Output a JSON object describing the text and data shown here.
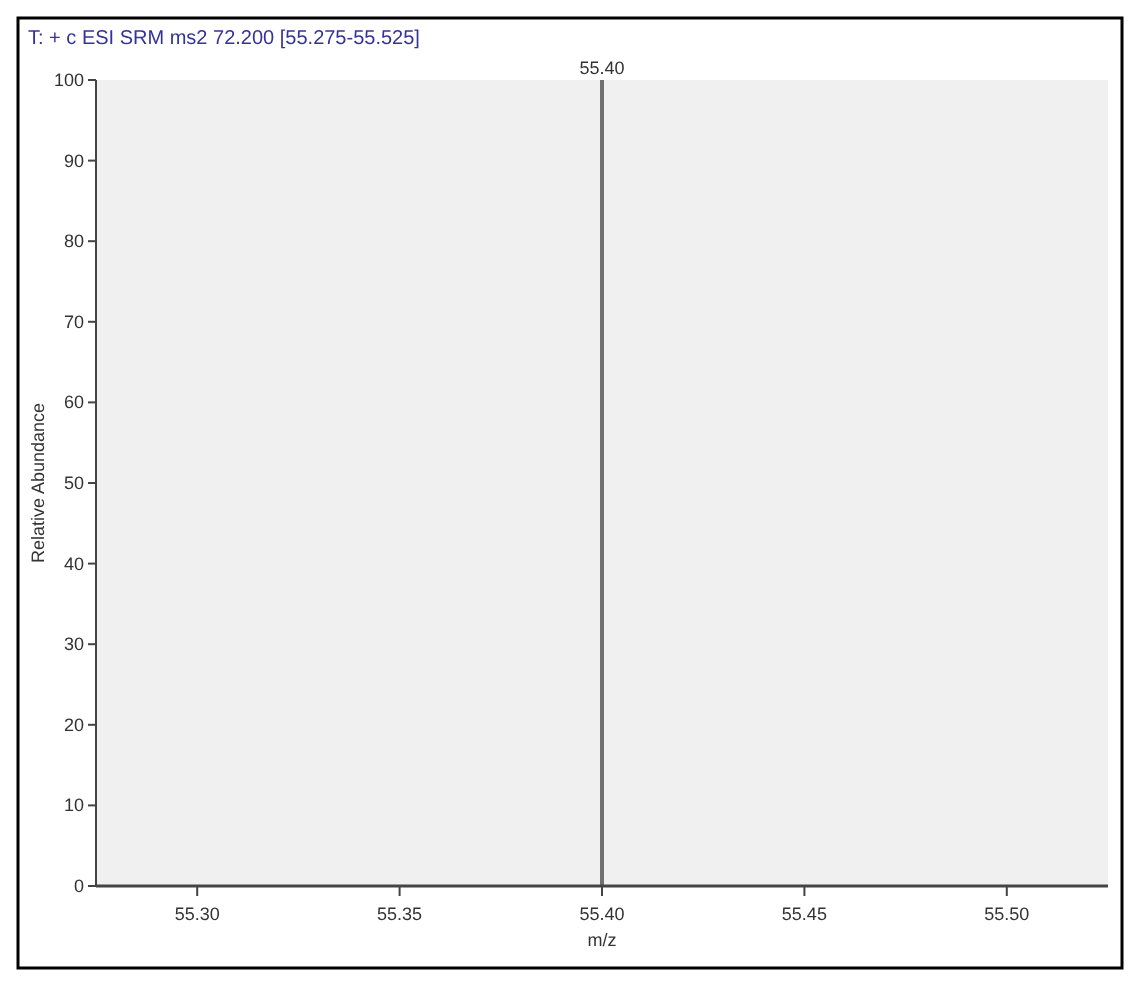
{
  "chart_data": {
    "type": "bar",
    "title": "T: + c ESI SRM ms2 72.200 [55.275-55.525]",
    "xlabel": "m/z",
    "ylabel": "Relative Abundance",
    "x": [
      55.4
    ],
    "series": [
      {
        "color": "#707070",
        "values": [
          100
        ]
      }
    ],
    "annotations": [
      {
        "text": "55.40",
        "x": 55.4,
        "y": 100
      }
    ],
    "xlim": [
      55.275,
      55.525
    ],
    "xticks": [
      {
        "value": 55.3,
        "label": "55.30"
      },
      {
        "value": 55.35,
        "label": "55.35"
      },
      {
        "value": 55.4,
        "label": "55.40"
      },
      {
        "value": 55.45,
        "label": "55.45"
      },
      {
        "value": 55.5,
        "label": "55.50"
      }
    ],
    "ylim": [
      0,
      100
    ],
    "yticks": [
      0,
      10,
      20,
      30,
      40,
      50,
      60,
      70,
      80,
      90,
      100
    ],
    "grid": false
  }
}
